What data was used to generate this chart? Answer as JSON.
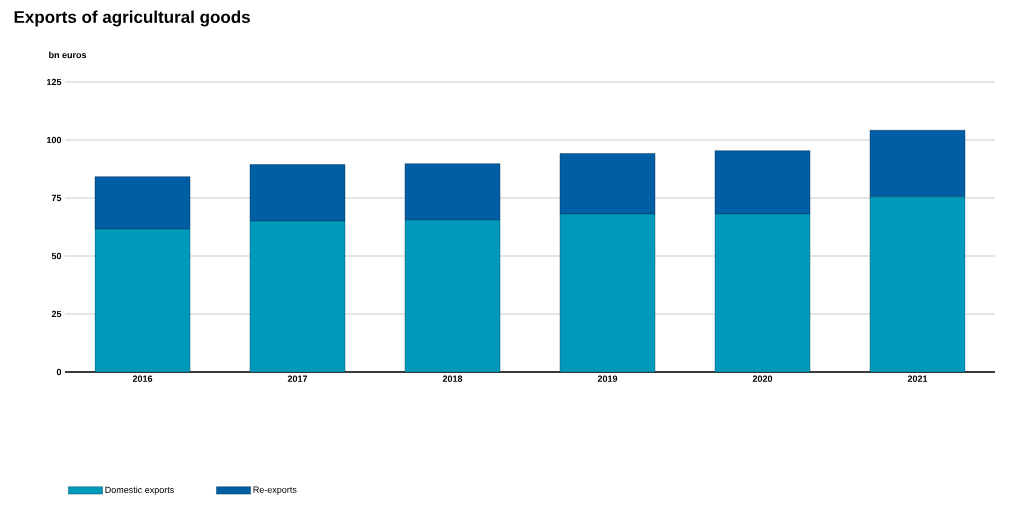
{
  "chart_data": {
    "type": "bar",
    "title": "Exports of agricultural goods",
    "ylabel": "bn euros",
    "categories": [
      "2016",
      "2017",
      "2018",
      "2019",
      "2020",
      "2021"
    ],
    "series": [
      {
        "name": "Domestic exports",
        "color": "#0099bb",
        "values": [
          61.6,
          65.1,
          65.5,
          68.1,
          68.1,
          75.5
        ]
      },
      {
        "name": "Re-exports",
        "color": "#005ea5",
        "values": [
          22.6,
          24.3,
          24.3,
          26.1,
          27.3,
          28.7
        ]
      }
    ],
    "stacked": true,
    "ylim": [
      0,
      125
    ],
    "yticks": [
      0,
      25,
      50,
      75,
      100,
      125
    ],
    "grid": "y",
    "legend": "bottom left"
  }
}
